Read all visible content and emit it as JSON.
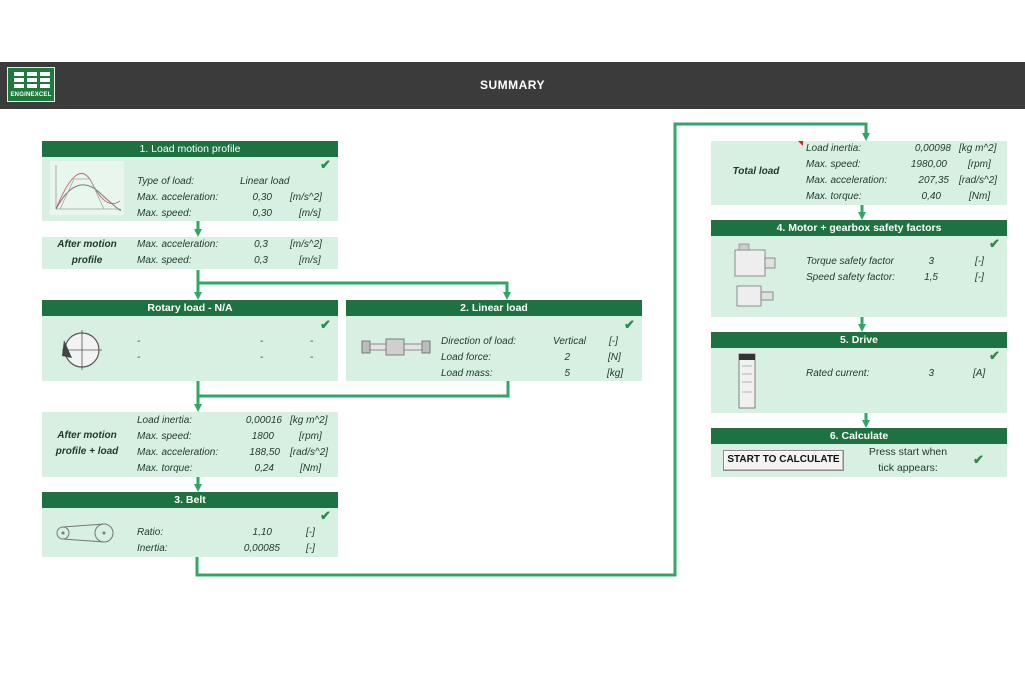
{
  "header": {
    "title": "SUMMARY",
    "logo_text": "ENGINEXCEL"
  },
  "load_motion_profile": {
    "title": "1. Load motion profile",
    "rows": [
      {
        "label": "Type of load:",
        "value": "Linear load",
        "unit": ""
      },
      {
        "label": "Max. acceleration:",
        "value": "0,30",
        "unit": "[m/s^2]"
      },
      {
        "label": "Max. speed:",
        "value": "0,30",
        "unit": "[m/s]"
      }
    ]
  },
  "after_motion_profile": {
    "label_line1": "After motion",
    "label_line2": "profile",
    "rows": [
      {
        "label": "Max. acceleration:",
        "value": "0,3",
        "unit": "[m/s^2]"
      },
      {
        "label": "Max. speed:",
        "value": "0,3",
        "unit": "[m/s]"
      }
    ]
  },
  "rotary_load": {
    "title": "Rotary load - N/A",
    "rows": [
      {
        "label": "-",
        "value": "-",
        "unit": "-"
      },
      {
        "label": "-",
        "value": "-",
        "unit": "-"
      }
    ]
  },
  "linear_load": {
    "title": "2. Linear load",
    "rows": [
      {
        "label": "Direction of load:",
        "value": "Vertical",
        "unit": "[-]"
      },
      {
        "label": "Load force:",
        "value": "2",
        "unit": "[N]"
      },
      {
        "label": "Load mass:",
        "value": "5",
        "unit": "[kg]"
      }
    ]
  },
  "after_motion_profile_load": {
    "label_line1": "After motion",
    "label_line2": "profile + load",
    "rows": [
      {
        "label": "Load inertia:",
        "value": "0,00016",
        "unit": "[kg m^2]"
      },
      {
        "label": "Max. speed:",
        "value": "1800",
        "unit": "[rpm]"
      },
      {
        "label": "Max. acceleration:",
        "value": "188,50",
        "unit": "[rad/s^2]"
      },
      {
        "label": "Max. torque:",
        "value": "0,24",
        "unit": "[Nm]"
      }
    ]
  },
  "belt": {
    "title": "3. Belt",
    "rows": [
      {
        "label": "Ratio:",
        "value": "1,10",
        "unit": "[-]"
      },
      {
        "label": "Inertia:",
        "value": "0,00085",
        "unit": "[-]"
      }
    ]
  },
  "total_load": {
    "label": "Total load",
    "rows": [
      {
        "label": "Load inertia:",
        "value": "0,00098",
        "unit": "[kg m^2]"
      },
      {
        "label": "Max. speed:",
        "value": "1980,00",
        "unit": "[rpm]"
      },
      {
        "label": "Max. acceleration:",
        "value": "207,35",
        "unit": "[rad/s^2]"
      },
      {
        "label": "Max. torque:",
        "value": "0,40",
        "unit": "[Nm]"
      }
    ]
  },
  "safety_factors": {
    "title": "4. Motor + gearbox safety factors",
    "rows": [
      {
        "label": "Torque safety factor",
        "value": "3",
        "unit": "[-]"
      },
      {
        "label": "Speed safety factor:",
        "value": "1,5",
        "unit": "[-]"
      }
    ]
  },
  "drive": {
    "title": "5. Drive",
    "rows": [
      {
        "label": "Rated current:",
        "value": "3",
        "unit": "[A]"
      }
    ]
  },
  "calculate": {
    "title": "6. Calculate",
    "button_label": "START TO CALCULATE",
    "hint_line1": "Press start when",
    "hint_line2": "tick appears:"
  },
  "colors": {
    "header_bg": "#3b3b3b",
    "section_header": "#1e7140",
    "panel_bg": "#d7f0e1",
    "connector": "#2fa866",
    "tick": "#2f8a4e"
  },
  "icons": {
    "tick": "check-icon"
  }
}
